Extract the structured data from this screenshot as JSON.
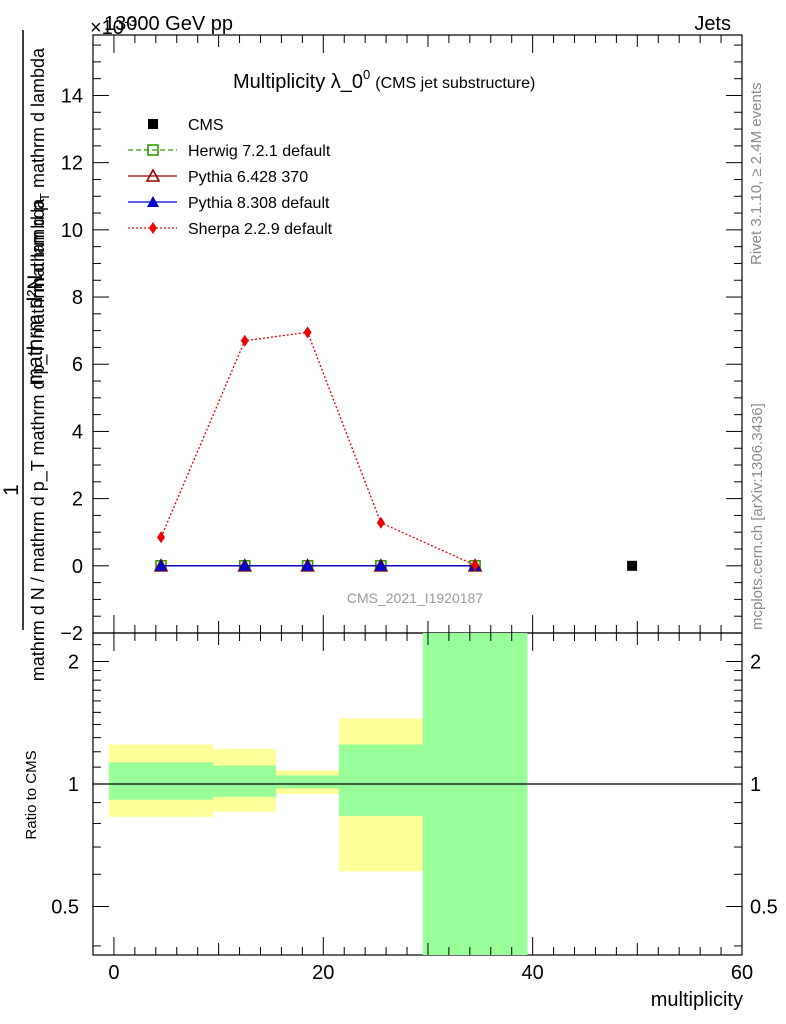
{
  "header": {
    "left_label": "13000 GeV pp",
    "right_label": "Jets",
    "scale_label": "×10",
    "scale_exponent": "-3"
  },
  "side_notes": {
    "rivet": "Rivet 3.1.10, ≥ 2.4M events",
    "mcplots": "mcplots.cern.ch [arXiv:1306.3436]"
  },
  "chart_data": [
    {
      "type": "line",
      "title": "Multiplicity λ_0",
      "title_superscript": "0",
      "subtitle": "(CMS jet substructure)",
      "watermark": "CMS_2021_I1920187",
      "ylabel_numerator": "1",
      "ylabel_denominator": "mathrm d N / mathrm d p_T mathrm d p_T mathrm d lambda",
      "ylabel_top": "mathrm d²N",
      "xlim": [
        -2,
        60
      ],
      "ylim": [
        -2,
        15.8
      ],
      "yticks": [
        -2,
        0,
        2,
        4,
        6,
        8,
        10,
        12,
        14
      ],
      "legend_position": "top-left",
      "series": [
        {
          "name": "CMS",
          "marker": "square-filled",
          "color": "#000000",
          "line": "none",
          "x": [
            49.5
          ],
          "y": [
            0.0
          ]
        },
        {
          "name": "Herwig 7.2.1 default",
          "marker": "square-open",
          "color": "#339900",
          "line": "dashed",
          "x": [
            4.5,
            12.5,
            18.5,
            25.5,
            34.5
          ],
          "y": [
            0.0,
            0.0,
            0.0,
            0.0,
            0.0
          ]
        },
        {
          "name": "Pythia 6.428 370",
          "marker": "triangle-open",
          "color": "#990000",
          "line": "solid",
          "x": [
            4.5,
            12.5,
            18.5,
            25.5,
            34.5
          ],
          "y": [
            0.0,
            0.0,
            0.0,
            0.0,
            0.0
          ]
        },
        {
          "name": "Pythia 8.308 default",
          "marker": "triangle-filled",
          "color": "#0000cc",
          "line": "solid",
          "x": [
            4.5,
            12.5,
            18.5,
            25.5,
            34.5
          ],
          "y": [
            0.0,
            0.0,
            0.0,
            0.0,
            0.0
          ]
        },
        {
          "name": "Sherpa 2.2.9 default",
          "marker": "diamond-filled",
          "color": "#ee0000",
          "line": "dotted",
          "x": [
            4.5,
            12.5,
            18.5,
            25.5,
            34.5
          ],
          "y": [
            0.85,
            6.7,
            6.95,
            1.28,
            0.02
          ]
        }
      ]
    },
    {
      "type": "area",
      "ylabel": "Ratio to CMS",
      "xlabel": "multiplicity",
      "xlim": [
        -2,
        60
      ],
      "ylim": [
        0.38,
        2.35
      ],
      "y_scale": "log",
      "yticks": [
        0.5,
        1,
        2
      ],
      "ytick_labels": [
        "0.5",
        "1",
        "2"
      ],
      "xticks": [
        0,
        20,
        40,
        60
      ],
      "xtick_labels": [
        "0",
        "20",
        "40",
        "60"
      ],
      "reference_line": 1,
      "bands": [
        {
          "x0": -0.5,
          "x1": 9.5,
          "yellow_low": 0.83,
          "yellow_high": 1.25,
          "green_low": 0.915,
          "green_high": 1.13
        },
        {
          "x0": 9.5,
          "x1": 15.5,
          "yellow_low": 0.855,
          "yellow_high": 1.22,
          "green_low": 0.93,
          "green_high": 1.11
        },
        {
          "x0": 15.5,
          "x1": 21.5,
          "yellow_low": 0.945,
          "yellow_high": 1.08,
          "green_low": 0.975,
          "green_high": 1.05
        },
        {
          "x0": 21.5,
          "x1": 29.5,
          "yellow_low": 0.61,
          "yellow_high": 1.45,
          "green_low": 0.835,
          "green_high": 1.25
        },
        {
          "x0": 29.5,
          "x1": 39.5,
          "yellow_low": null,
          "yellow_high": null,
          "green_low": 0.38,
          "green_high": 2.35
        }
      ]
    }
  ]
}
